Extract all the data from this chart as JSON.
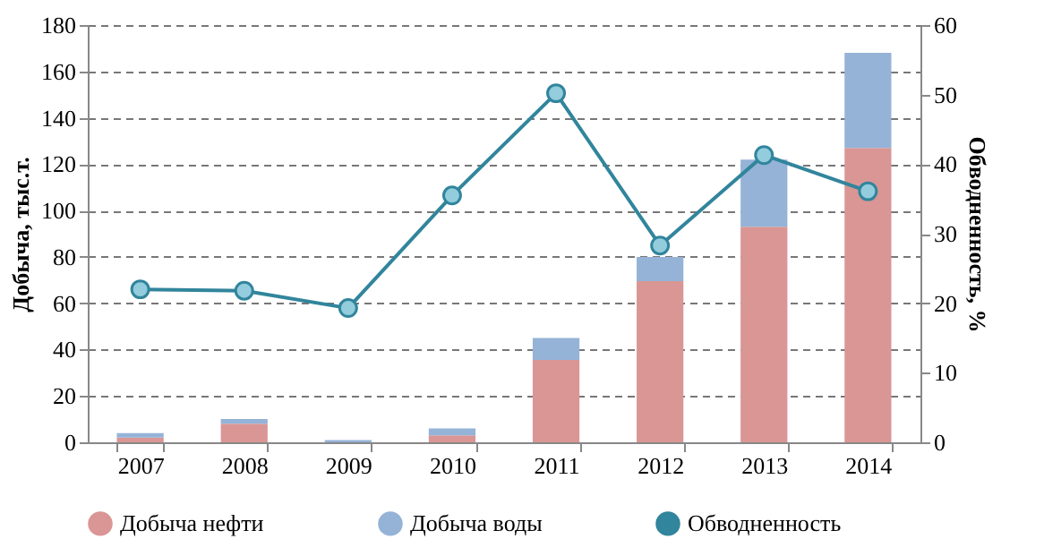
{
  "chart_data": {
    "type": "bar",
    "stacked": true,
    "categories": [
      "2007",
      "2008",
      "2009",
      "2010",
      "2011",
      "2012",
      "2013",
      "2014"
    ],
    "ylabel": "Добыча, тыс.т.",
    "y2label": "Обводненность, %",
    "ylim": [
      0,
      180
    ],
    "yticks": [
      0,
      20,
      40,
      60,
      80,
      100,
      120,
      140,
      160,
      180
    ],
    "y2lim": [
      0,
      60
    ],
    "y2ticks": [
      0,
      10,
      20,
      30,
      40,
      50,
      60
    ],
    "grid": "y",
    "legend": "bottom",
    "series": [
      {
        "name": "Добыча нефти",
        "color": "#d99694",
        "values": [
          2,
          8,
          0,
          3,
          35.5,
          69.5,
          93,
          127
        ]
      },
      {
        "name": "Добыча воды",
        "color": "#95b3d7",
        "values": [
          2,
          2,
          1,
          3,
          9.5,
          10.5,
          29,
          41
        ]
      },
      {
        "name": "Обводненность",
        "type": "line",
        "axis": "y2",
        "marker": "circle",
        "color": "#31859c",
        "values": [
          22,
          21.8,
          19.3,
          35.5,
          50.2,
          28.3,
          41.3,
          36.1
        ]
      }
    ]
  }
}
